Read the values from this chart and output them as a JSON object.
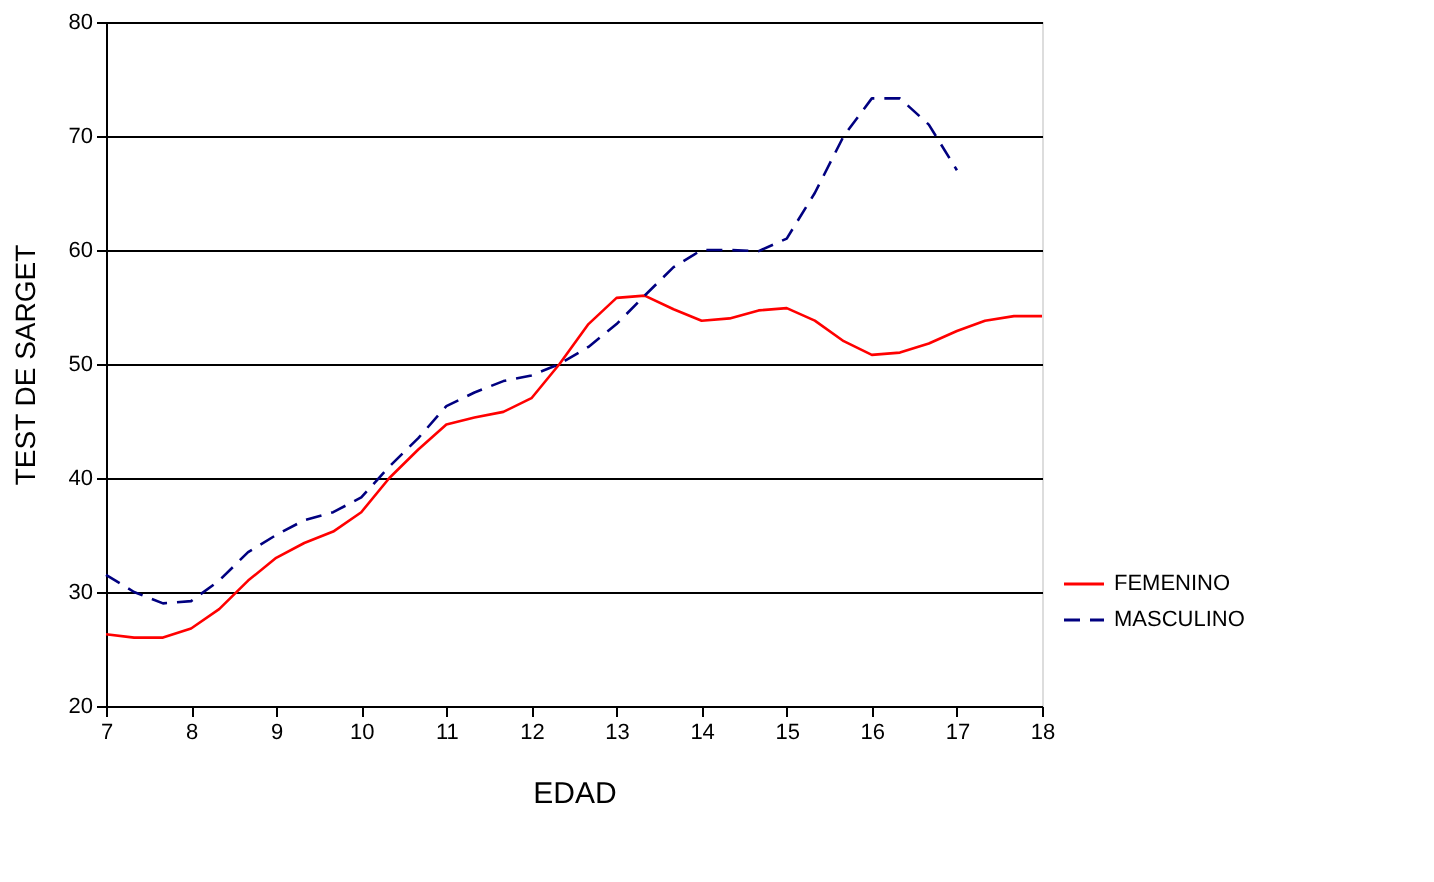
{
  "chart_data": {
    "type": "line",
    "xlabel": "EDAD",
    "ylabel": "TEST DE SARGET",
    "xlim": [
      7,
      18
    ],
    "xticks": [
      7,
      8,
      9,
      10,
      11,
      12,
      13,
      14,
      15,
      16,
      17,
      18
    ],
    "ylim": [
      20,
      80
    ],
    "yticks": [
      20,
      30,
      40,
      50,
      60,
      70,
      80
    ],
    "grid": "y",
    "legend": "bottom right",
    "series": [
      {
        "name": "FEMENINO",
        "color": "#ff0000",
        "line_style": "solid",
        "x": [
          7,
          7.33,
          7.67,
          8,
          8.33,
          8.67,
          9,
          9.33,
          9.67,
          10,
          10.33,
          10.67,
          11,
          11.33,
          11.67,
          12,
          12.33,
          12.67,
          13,
          13.33,
          13.67,
          14,
          14.33,
          14.67,
          15,
          15.33,
          15.67,
          16,
          16.33,
          16.67,
          17,
          17.33,
          17.67,
          18
        ],
        "values": [
          26.3,
          26,
          26,
          26.8,
          28.5,
          31,
          33,
          34.3,
          35.3,
          37,
          40,
          42.5,
          44.7,
          45.3,
          45.8,
          47,
          50,
          53.5,
          55.8,
          56,
          54.8,
          53.8,
          54,
          54.7,
          54.9,
          53.8,
          52,
          50.8,
          51,
          51.8,
          52.9,
          53.8,
          54.2,
          54.2
        ]
      },
      {
        "name": "MASCULINO",
        "color": "#000080",
        "line_style": "dashed",
        "x": [
          7,
          7.33,
          7.67,
          8,
          8.33,
          8.67,
          9,
          9.33,
          9.67,
          10,
          10.33,
          10.67,
          11,
          11.33,
          11.67,
          12,
          12.33,
          12.67,
          13,
          13.33,
          13.67,
          14,
          14.33,
          14.67,
          15,
          15.33,
          15.67,
          16,
          16.33,
          16.67,
          17
        ],
        "values": [
          31.5,
          30,
          29,
          29.2,
          31,
          33.5,
          35,
          36.3,
          37,
          38.3,
          41,
          43.5,
          46.3,
          47.5,
          48.5,
          49,
          50,
          51.5,
          53.5,
          56,
          58.5,
          60,
          60,
          59.9,
          61,
          65,
          70,
          73.3,
          73.3,
          71,
          67
        ]
      }
    ]
  }
}
